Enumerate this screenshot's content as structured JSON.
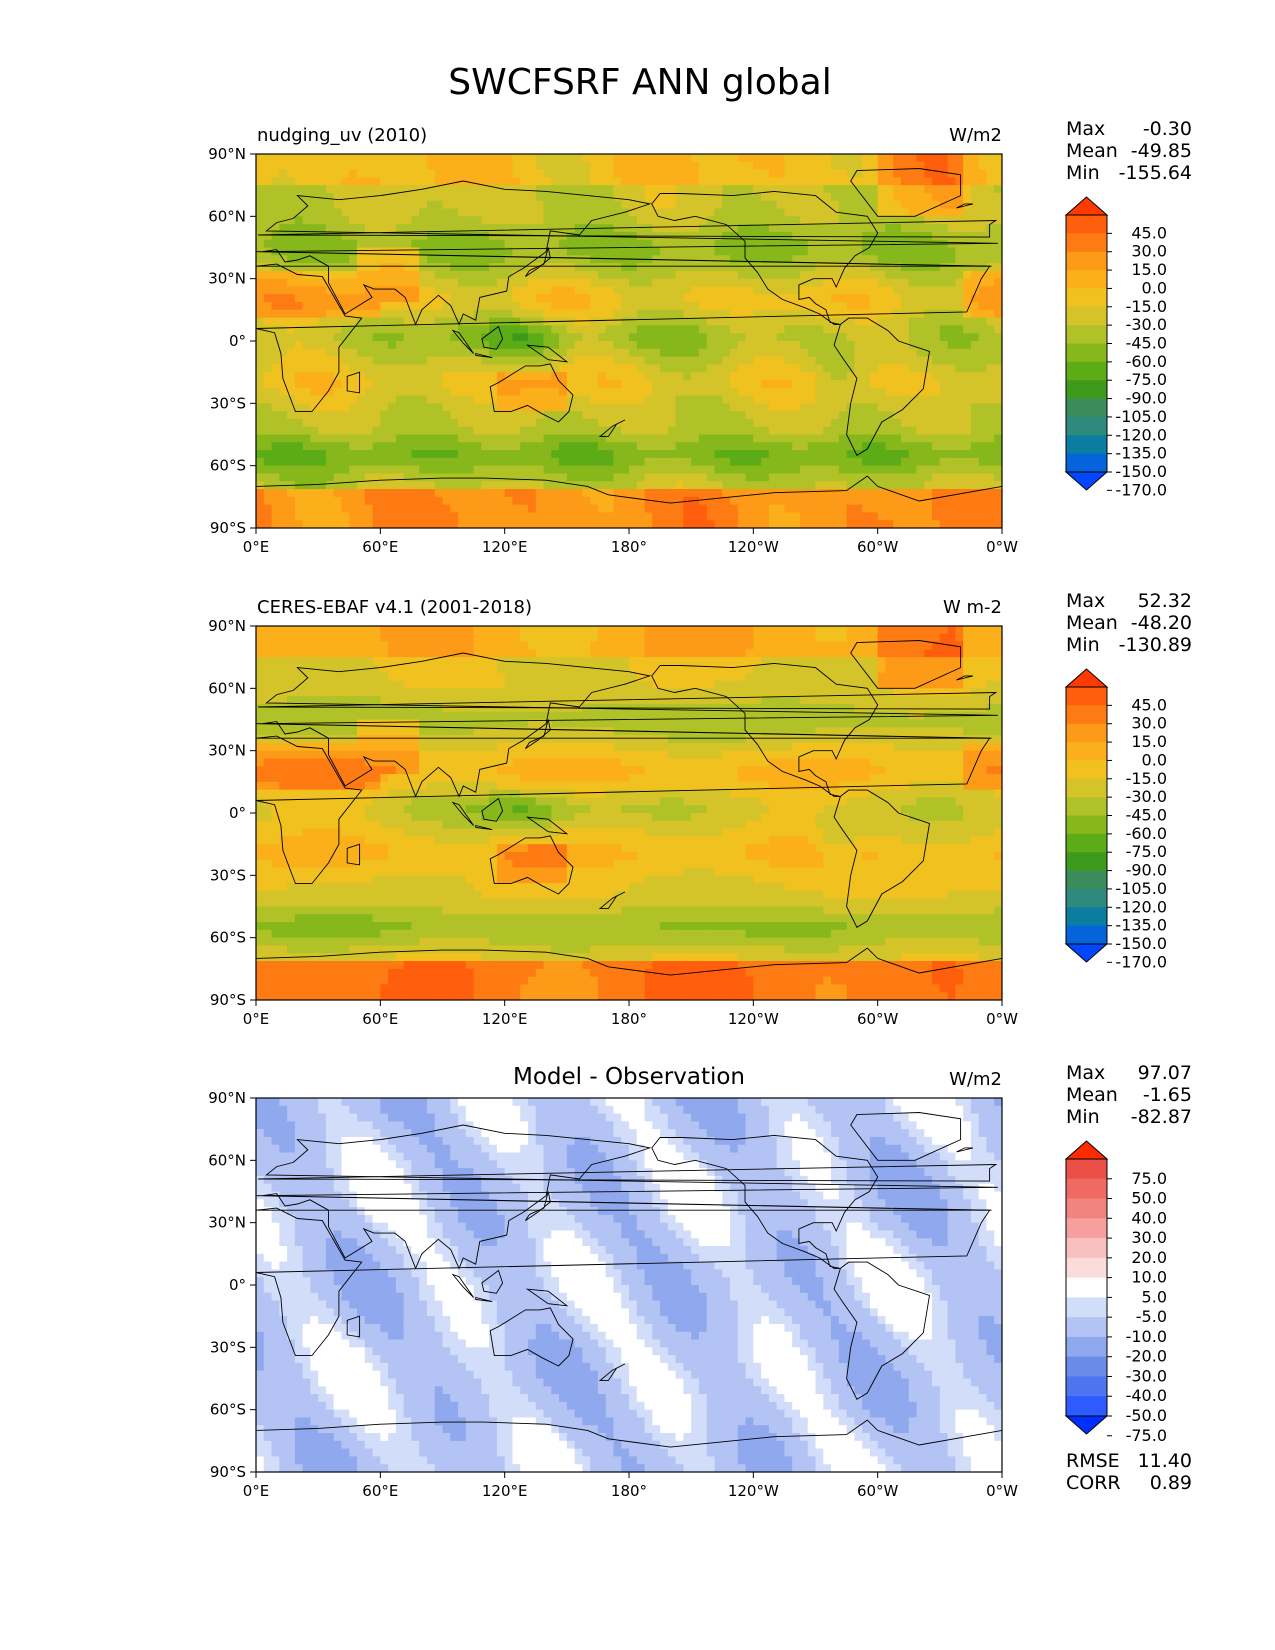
{
  "title": "SWCFSRF ANN global",
  "colors": {
    "standard_scale": [
      "#0047ff",
      "#0564dc",
      "#0a7da0",
      "#2f8a7e",
      "#3b8c5a",
      "#3e9a1c",
      "#5cac18",
      "#86b81c",
      "#b0c228",
      "#d4c42a",
      "#f1c21f",
      "#fbb01b",
      "#fd9a17",
      "#fe7a12",
      "#ff5e0c",
      "#ff3a00"
    ],
    "diff_scale": [
      "#0030ff",
      "#2d5bff",
      "#4d75ef",
      "#6b8be8",
      "#8fa8ee",
      "#b3c3f4",
      "#d2ddfa",
      "#ffffff",
      "#fbdcdc",
      "#f9c0c0",
      "#f5a09e",
      "#f28480",
      "#ef6a63",
      "#ec4f46",
      "#ff2b00"
    ],
    "land_line": "#000000"
  },
  "axes": {
    "lat_ticks": [
      "90°N",
      "60°N",
      "30°N",
      "0°",
      "30°S",
      "60°S",
      "90°S"
    ],
    "lon_ticks": [
      "0°E",
      "60°E",
      "120°E",
      "180°",
      "120°W",
      "60°W",
      "0°W"
    ]
  },
  "panels": [
    {
      "id": "test",
      "title": "nudging_uv (2010)",
      "units": "W/m2",
      "stats": {
        "max_label": "Max",
        "max": "-0.30",
        "mean_label": "Mean",
        "mean": "-49.85",
        "min_label": "Min",
        "min": "-155.64"
      },
      "colorbar": [
        "45.0",
        "30.0",
        "15.0",
        "0.0",
        "-15.0",
        "-30.0",
        "-45.0",
        "-60.0",
        "-75.0",
        "-90.0",
        "-105.0",
        "-120.0",
        "-135.0",
        "-150.0",
        "-170.0"
      ]
    },
    {
      "id": "ref",
      "title": "CERES-EBAF v4.1 (2001-2018)",
      "units": "W m-2",
      "stats": {
        "max_label": "Max",
        "max": "52.32",
        "mean_label": "Mean",
        "mean": "-48.20",
        "min_label": "Min",
        "min": "-130.89"
      },
      "colorbar": [
        "45.0",
        "30.0",
        "15.0",
        "0.0",
        "-15.0",
        "-30.0",
        "-45.0",
        "-60.0",
        "-75.0",
        "-90.0",
        "-105.0",
        "-120.0",
        "-135.0",
        "-150.0",
        "-170.0"
      ]
    },
    {
      "id": "diff",
      "title": "Model - Observation",
      "units": "W/m2",
      "stats": {
        "max_label": "Max",
        "max": "97.07",
        "mean_label": "Mean",
        "mean": "-1.65",
        "min_label": "Min",
        "min": "-82.87"
      },
      "colorbar": [
        "75.0",
        "50.0",
        "40.0",
        "30.0",
        "20.0",
        "10.0",
        "5.0",
        "-5.0",
        "-10.0",
        "-20.0",
        "-30.0",
        "-40.0",
        "-50.0",
        "-75.0"
      ],
      "extra": {
        "rmse_label": "RMSE",
        "rmse": "11.40",
        "corr_label": "CORR",
        "corr": "0.89"
      }
    }
  ],
  "chart_data": {
    "type": "heatmap",
    "title": "SWCFSRF ANN global",
    "x_ticks": [
      "0°E",
      "60°E",
      "120°E",
      "180°",
      "120°W",
      "60°W",
      "0°W"
    ],
    "y_ticks": [
      "90°N",
      "60°N",
      "30°N",
      "0°",
      "30°S",
      "60°S",
      "90°S"
    ],
    "xlim": [
      0,
      360
    ],
    "ylim": [
      -90,
      90
    ],
    "panels": [
      {
        "title": "nudging_uv (2010)",
        "units": "W/m2",
        "max": -0.3,
        "mean": -49.85,
        "min": -155.64,
        "levels": [
          -170,
          -150,
          -135,
          -120,
          -105,
          -90,
          -75,
          -60,
          -45,
          -30,
          -15,
          0,
          15,
          30,
          45
        ]
      },
      {
        "title": "CERES-EBAF v4.1 (2001-2018)",
        "units": "W m-2",
        "max": 52.32,
        "mean": -48.2,
        "min": -130.89,
        "levels": [
          -170,
          -150,
          -135,
          -120,
          -105,
          -90,
          -75,
          -60,
          -45,
          -30,
          -15,
          0,
          15,
          30,
          45
        ]
      },
      {
        "title": "Model - Observation",
        "units": "W/m2",
        "max": 97.07,
        "mean": -1.65,
        "min": -82.87,
        "levels": [
          -75,
          -50,
          -40,
          -30,
          -20,
          -10,
          -5,
          5,
          10,
          20,
          30,
          40,
          50,
          75
        ],
        "rmse": 11.4,
        "corr": 0.89
      }
    ]
  }
}
